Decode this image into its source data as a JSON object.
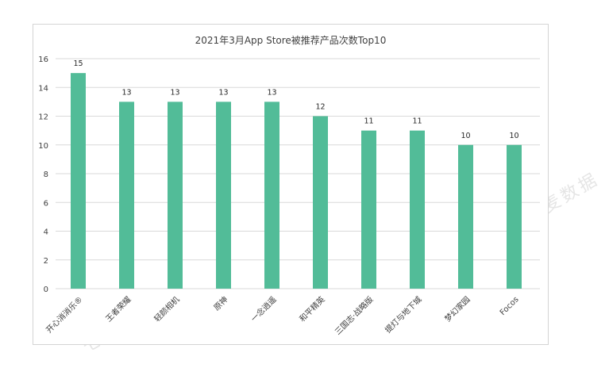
{
  "watermark": "七麦数据",
  "chart_data": {
    "type": "bar",
    "title": "2021年3月App Store被推荐产品次数Top10",
    "categories": [
      "开心消消乐®",
      "王者荣耀",
      "轻颜相机",
      "原神",
      "一念逍遥",
      "和平精英",
      "三国志·战略版",
      "提灯与地下城",
      "梦幻家园",
      "Focos"
    ],
    "values": [
      15,
      13,
      13,
      13,
      13,
      12,
      11,
      11,
      10,
      10
    ],
    "ylim": [
      0,
      16
    ],
    "yticks": [
      0,
      2,
      4,
      6,
      8,
      10,
      12,
      14,
      16
    ],
    "grid": true,
    "bar_color": "#52bc98",
    "grid_color": "#d9d9d9",
    "xlabel": "",
    "ylabel": ""
  }
}
